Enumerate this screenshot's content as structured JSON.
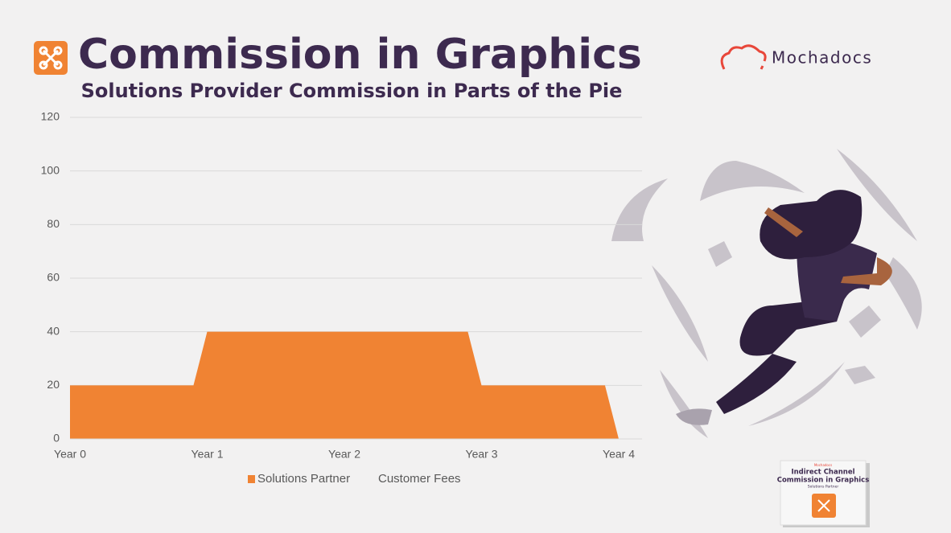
{
  "header": {
    "title": "Commission in Graphics",
    "brand": "Mochadocs"
  },
  "chart_data": {
    "type": "area",
    "title": "Solutions Provider Commission in Parts of the Pie",
    "x": [
      0,
      0.9,
      1,
      2.9,
      3,
      3.9,
      4
    ],
    "series": [
      {
        "name": "Solutions Partner",
        "color": "#f08333",
        "values": [
          20,
          20,
          40,
          40,
          20,
          20,
          0
        ]
      },
      {
        "name": "Customer Fees",
        "color": "#f2f1f1",
        "values": [
          0,
          0,
          0,
          0,
          0,
          0,
          0
        ]
      }
    ],
    "stacked": true,
    "xlim": [
      0,
      4
    ],
    "xticks": [
      {
        "value": 0,
        "label": "Year 0"
      },
      {
        "value": 1,
        "label": "Year 1"
      },
      {
        "value": 2,
        "label": "Year 2"
      },
      {
        "value": 3,
        "label": "Year 3"
      },
      {
        "value": 4,
        "label": "Year 4"
      }
    ],
    "ylim": [
      0,
      120
    ],
    "yticks": [
      0,
      20,
      40,
      60,
      80,
      100,
      120
    ],
    "grid": true,
    "legend": "bottom"
  },
  "book": {
    "brand": "Mochadocs",
    "title_line1": "Indirect Channel",
    "title_line2": "Commission in Graphics",
    "subtitle": "Solutions Partner"
  }
}
